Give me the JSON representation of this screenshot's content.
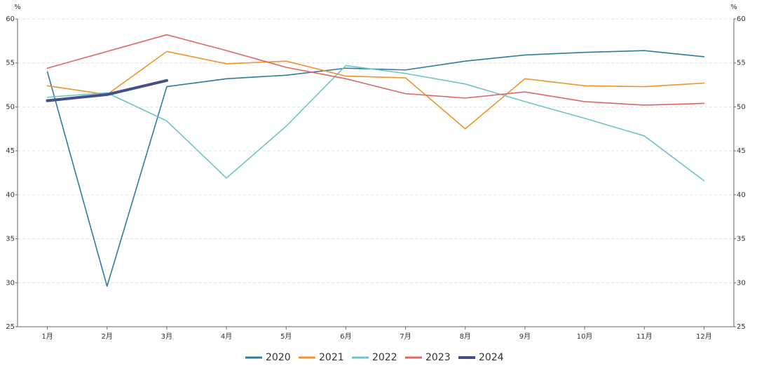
{
  "chart_data": {
    "type": "line",
    "y_label": "%",
    "y2_label": "%",
    "categories": [
      "1月",
      "2月",
      "3月",
      "4月",
      "5月",
      "6月",
      "7月",
      "8月",
      "9月",
      "10月",
      "11月",
      "12月"
    ],
    "series": [
      {
        "name": "2020",
        "color": "#2e7c9a",
        "linewidth": 1.6,
        "values": [
          54.0,
          29.6,
          52.3,
          53.2,
          53.6,
          54.4,
          54.2,
          55.2,
          55.9,
          56.2,
          56.4,
          55.7
        ]
      },
      {
        "name": "2021",
        "color": "#f0922e",
        "linewidth": 1.6,
        "values": [
          52.4,
          51.4,
          56.3,
          54.9,
          55.2,
          53.5,
          53.3,
          47.5,
          53.2,
          52.4,
          52.3,
          52.7
        ]
      },
      {
        "name": "2022",
        "color": "#6cc4c9",
        "linewidth": 1.6,
        "values": [
          51.1,
          51.6,
          48.4,
          41.9,
          47.8,
          54.7,
          53.8,
          52.6,
          50.6,
          48.7,
          46.7,
          41.6
        ]
      },
      {
        "name": "2023",
        "color": "#e06666",
        "linewidth": 1.6,
        "values": [
          54.4,
          56.3,
          58.2,
          56.4,
          54.5,
          53.2,
          51.5,
          51.0,
          51.7,
          50.6,
          50.2,
          50.4
        ]
      },
      {
        "name": "2024",
        "color": "#45508a",
        "linewidth": 4,
        "values": [
          50.7,
          51.4,
          53.0,
          null,
          null,
          null,
          null,
          null,
          null,
          null,
          null,
          null
        ]
      }
    ],
    "ylim": [
      25,
      60
    ],
    "yticks": [
      25,
      30,
      35,
      40,
      45,
      50,
      55,
      60
    ],
    "y2lim": [
      25,
      60
    ],
    "y2ticks": [
      25,
      30,
      35,
      40,
      45,
      50,
      55,
      60
    ],
    "grid": true,
    "legend": "bottom"
  }
}
